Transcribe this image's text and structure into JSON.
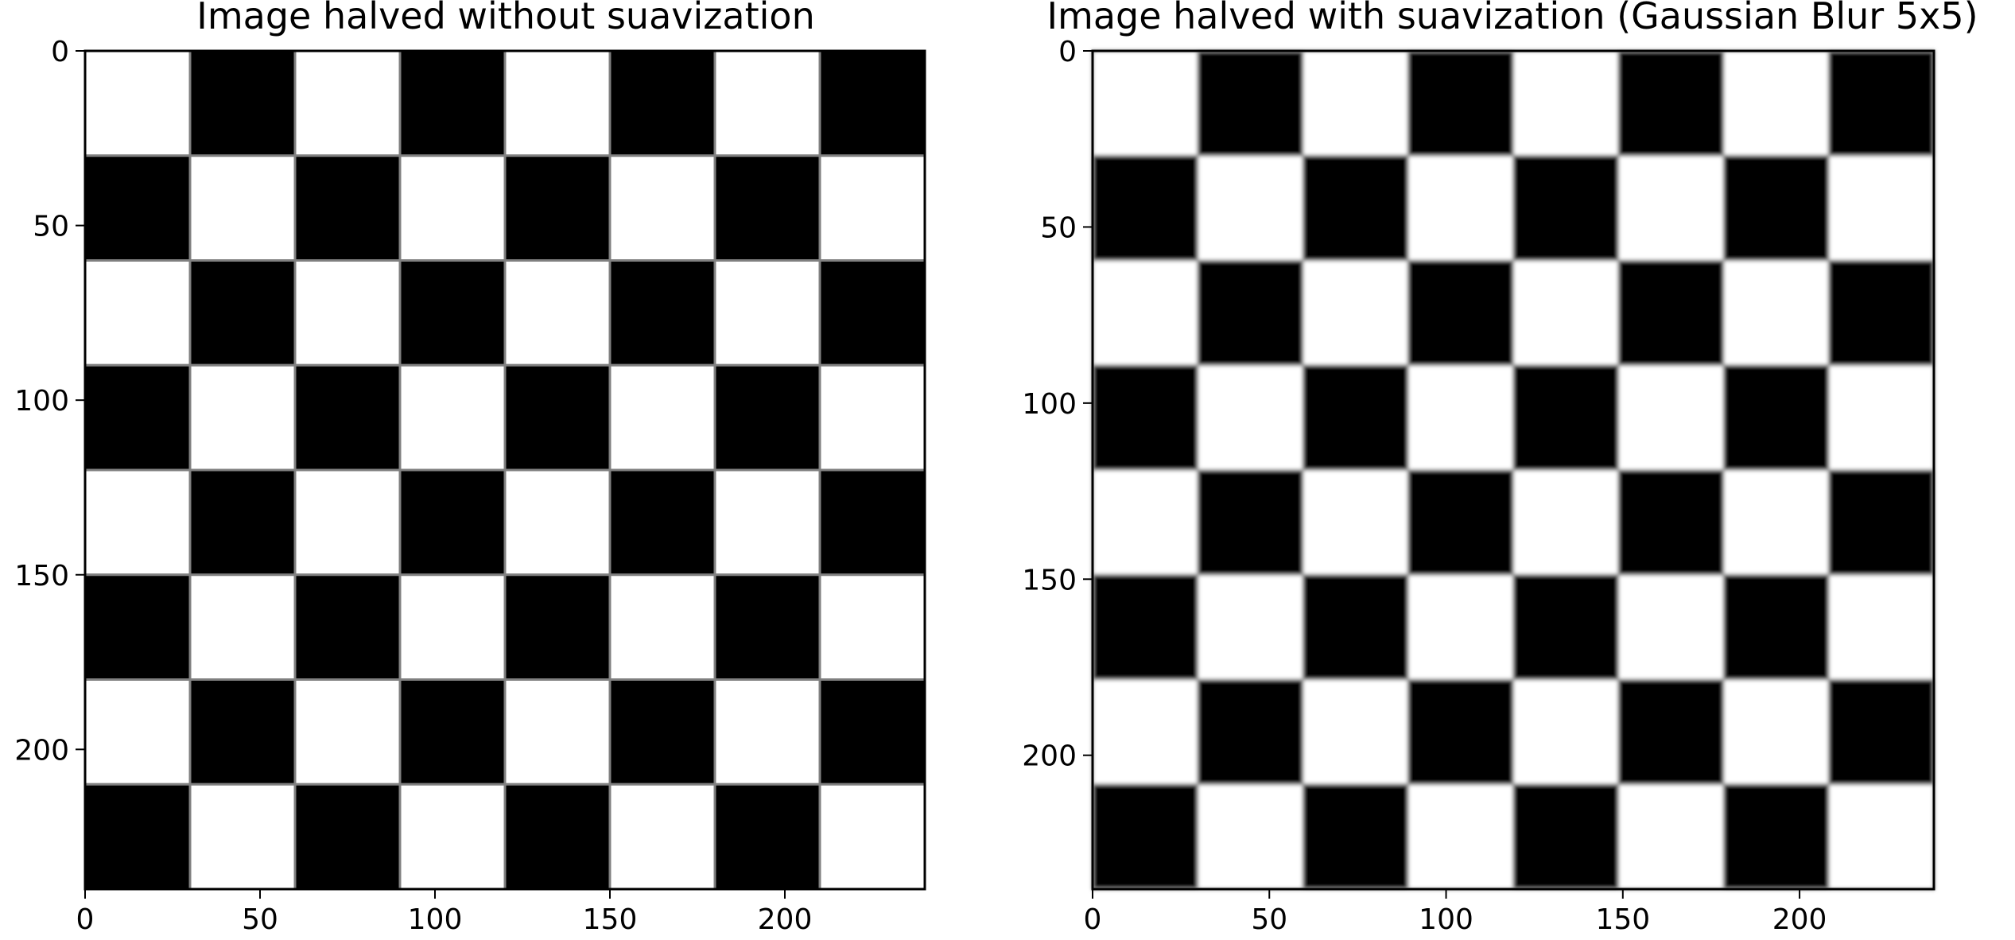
{
  "figure": {
    "background": "#ffffff",
    "panels": [
      {
        "id": "left",
        "title": "Image halved without suavization",
        "image": {
          "type": "checkerboard",
          "rows": 8,
          "cols": 8,
          "first_cell": "white",
          "light": "#ffffff",
          "dark": "#000000",
          "edge": "#808080",
          "blurred": false
        },
        "x_ticks": [
          0,
          50,
          100,
          150,
          200
        ],
        "y_ticks": [
          0,
          50,
          100,
          150,
          200
        ],
        "extent": 240
      },
      {
        "id": "right",
        "title": "Image halved with suavization (Gaussian Blur 5x5)",
        "image": {
          "type": "checkerboard",
          "rows": 8,
          "cols": 8,
          "first_cell": "white",
          "light": "#ffffff",
          "dark": "#000000",
          "edge": "#a0a0a0",
          "blurred": true
        },
        "x_ticks": [
          0,
          50,
          100,
          150,
          200
        ],
        "y_ticks": [
          0,
          50,
          100,
          150,
          200
        ],
        "extent": 238
      }
    ]
  }
}
